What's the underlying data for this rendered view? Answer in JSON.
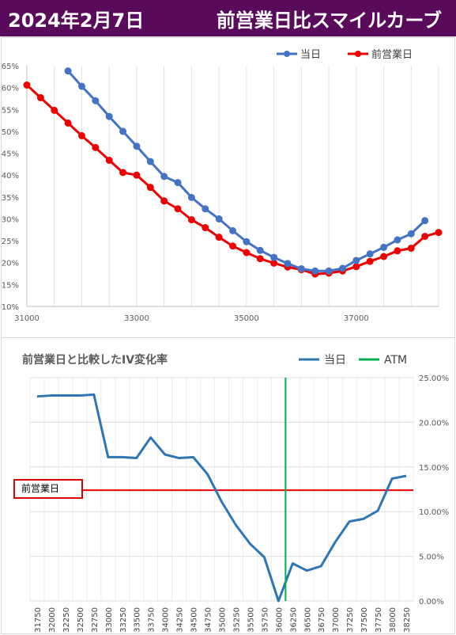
{
  "header": {
    "date": "2024年2月7日",
    "title": "前営業日比スマイルカーブ"
  },
  "colors": {
    "header_bg": "#5a0a5a",
    "today": "#4472c4",
    "prev": "#ee0000",
    "atm": "#00b050"
  },
  "chart_data": [
    {
      "type": "line",
      "title": "",
      "xlabel": "",
      "ylabel": "",
      "xlim": [
        31000,
        38500
      ],
      "ylim": [
        0.1,
        0.65
      ],
      "x_ticks": [
        "31000",
        "33000",
        "35000",
        "37000"
      ],
      "x_tick_values": [
        31000,
        33000,
        35000,
        37000
      ],
      "y_ticks": [
        "10%",
        "15%",
        "20%",
        "25%",
        "30%",
        "35%",
        "40%",
        "45%",
        "50%",
        "55%",
        "60%",
        "65%"
      ],
      "y_tick_values": [
        0.1,
        0.15,
        0.2,
        0.25,
        0.3,
        0.35,
        0.4,
        0.45,
        0.5,
        0.55,
        0.6,
        0.65
      ],
      "grid": "vertical",
      "legend": "top-right",
      "series": [
        {
          "name": "当日",
          "color": "#4472c4",
          "x": [
            31750,
            32000,
            32250,
            32500,
            32750,
            33000,
            33250,
            33500,
            33750,
            34000,
            34250,
            34500,
            34750,
            35000,
            35250,
            35500,
            35750,
            36000,
            36250,
            36500,
            36750,
            37000,
            37250,
            37500,
            37750,
            38000,
            38250
          ],
          "y": [
            0.638,
            0.603,
            0.57,
            0.534,
            0.5,
            0.466,
            0.431,
            0.397,
            0.383,
            0.349,
            0.323,
            0.3,
            0.273,
            0.248,
            0.228,
            0.212,
            0.198,
            0.186,
            0.181,
            0.181,
            0.187,
            0.205,
            0.22,
            0.235,
            0.252,
            0.266,
            0.296
          ]
        },
        {
          "name": "前営業日",
          "color": "#ee0000",
          "x": [
            31000,
            31250,
            31500,
            31750,
            32000,
            32250,
            32500,
            32750,
            33000,
            33250,
            33500,
            33750,
            34000,
            34250,
            34500,
            34750,
            35000,
            35250,
            35500,
            35750,
            36000,
            36250,
            36500,
            36750,
            37000,
            37250,
            37500,
            37750,
            38000,
            38250,
            38500
          ],
          "y": [
            0.606,
            0.577,
            0.548,
            0.519,
            0.49,
            0.463,
            0.434,
            0.406,
            0.4,
            0.372,
            0.341,
            0.323,
            0.298,
            0.28,
            0.258,
            0.238,
            0.223,
            0.209,
            0.199,
            0.19,
            0.184,
            0.174,
            0.176,
            0.181,
            0.191,
            0.203,
            0.214,
            0.227,
            0.233,
            0.26,
            0.269
          ]
        }
      ]
    },
    {
      "type": "line",
      "title": "前営業日と比較したIV変化率",
      "xlabel": "",
      "ylabel": "",
      "ylim": [
        0,
        0.25
      ],
      "y_axis_side": "right",
      "y_ticks": [
        "0.00%",
        "5.00%",
        "10.00%",
        "15.00%",
        "20.00%",
        "25.00%"
      ],
      "y_tick_values": [
        0,
        0.05,
        0.1,
        0.15,
        0.2,
        0.25
      ],
      "categories": [
        "31750",
        "32000",
        "32250",
        "32500",
        "32750",
        "33000",
        "33250",
        "33500",
        "33750",
        "34000",
        "34250",
        "34500",
        "34750",
        "35000",
        "35250",
        "35500",
        "35750",
        "36000",
        "36250",
        "36500",
        "36750",
        "37000",
        "37250",
        "37500",
        "37750",
        "38000",
        "38250"
      ],
      "grid": "horizontal and vertical",
      "legend": "top-right",
      "series": [
        {
          "name": "当日",
          "color": "#2e75b6",
          "values": [
            0.229,
            0.23,
            0.23,
            0.23,
            0.231,
            0.161,
            0.161,
            0.16,
            0.183,
            0.164,
            0.16,
            0.161,
            0.142,
            0.111,
            0.085,
            0.064,
            0.049,
            0.0,
            0.042,
            0.034,
            0.039,
            0.066,
            0.089,
            0.092,
            0.101,
            0.137,
            0.14
          ]
        }
      ],
      "atm": {
        "name": "ATM",
        "color": "#00b050",
        "position_between": [
          "36000",
          "36250"
        ]
      },
      "reference_line": {
        "label": "前営業日",
        "value": 0.124,
        "color": "#ee0000"
      }
    }
  ]
}
